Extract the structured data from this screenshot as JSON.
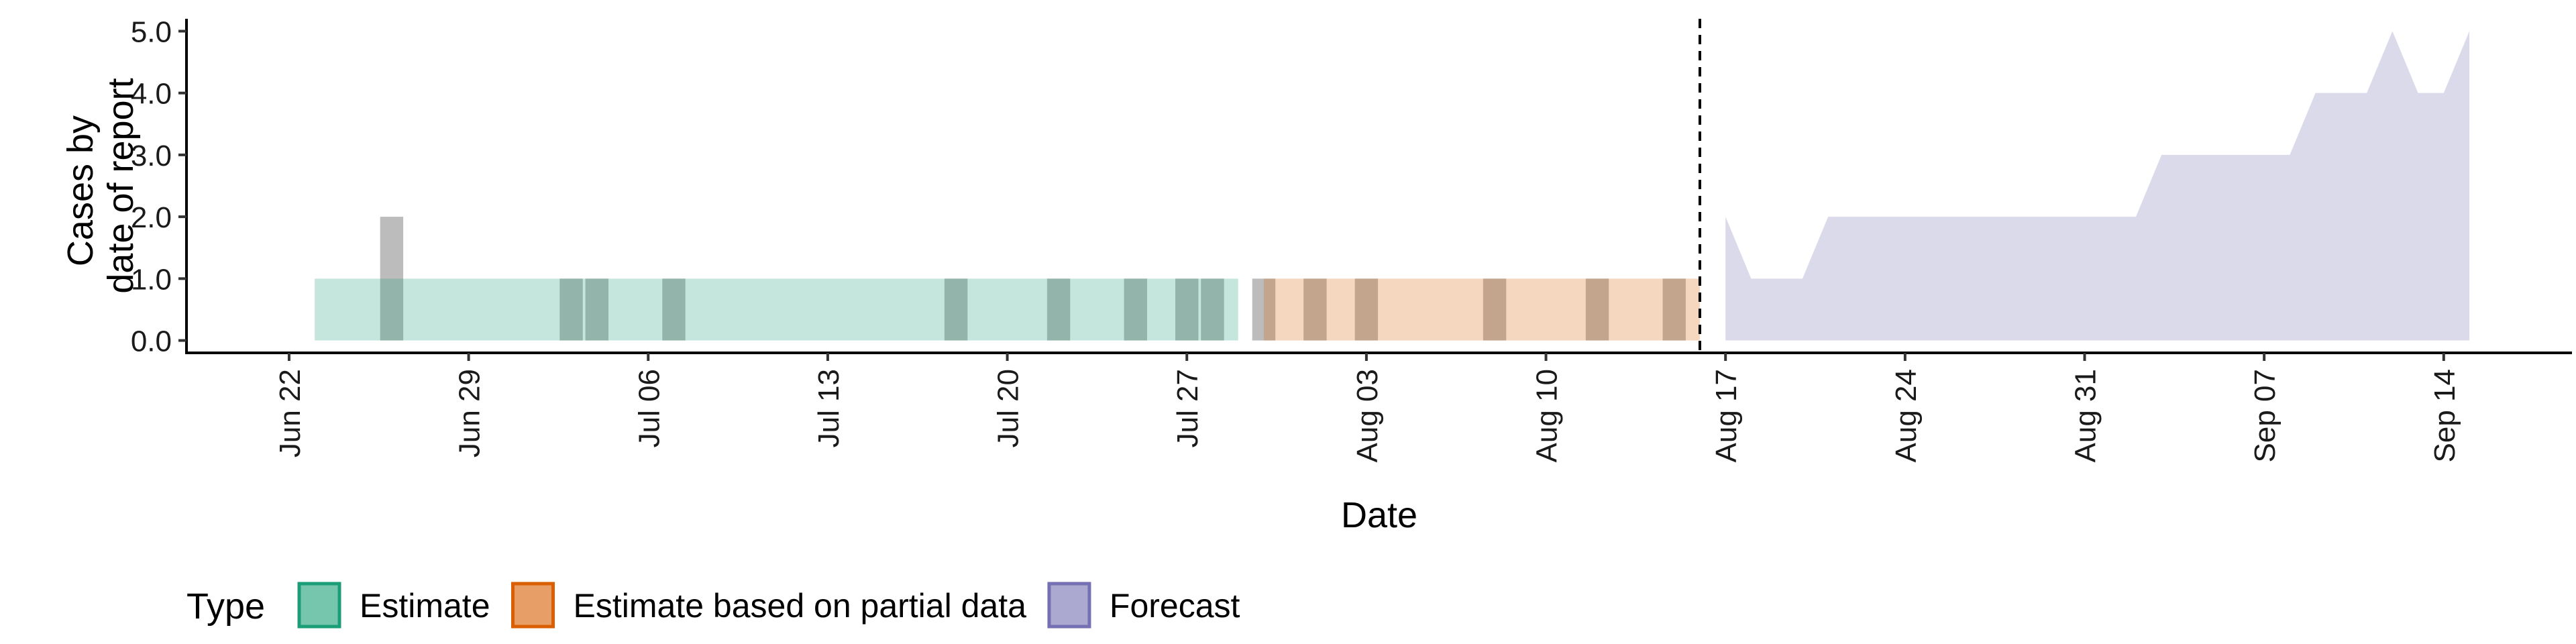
{
  "chart_data": {
    "type": "area",
    "xlabel": "Date",
    "ylabel_lines": [
      "Cases by",
      "date of report"
    ],
    "x_range": [
      "2020-06-18",
      "2020-09-19"
    ],
    "ylim": [
      -0.2,
      5.2
    ],
    "y_ticks": [
      0,
      1,
      2,
      3,
      4,
      5
    ],
    "y_tick_labels": [
      "0.0",
      "1.0",
      "2.0",
      "3.0",
      "4.0",
      "5.0"
    ],
    "x_ticks": [
      "2020-06-22",
      "2020-06-29",
      "2020-07-06",
      "2020-07-13",
      "2020-07-20",
      "2020-07-27",
      "2020-08-03",
      "2020-08-10",
      "2020-08-17",
      "2020-08-24",
      "2020-08-31",
      "2020-09-07",
      "2020-09-14"
    ],
    "x_tick_labels": [
      "Jun 22",
      "Jun 29",
      "Jul 06",
      "Jul 13",
      "Jul 20",
      "Jul 27",
      "Aug 03",
      "Aug 10",
      "Aug 17",
      "Aug 24",
      "Aug 31",
      "Sep 07",
      "Sep 14"
    ],
    "grid": false,
    "forecast_date": "2020-08-16",
    "reported_cases": {
      "color": "#a6a6a6",
      "points": [
        {
          "date": "2020-06-26",
          "value": 2
        },
        {
          "date": "2020-07-03",
          "value": 1
        },
        {
          "date": "2020-07-04",
          "value": 1
        },
        {
          "date": "2020-07-07",
          "value": 1
        },
        {
          "date": "2020-07-18",
          "value": 1
        },
        {
          "date": "2020-07-22",
          "value": 1
        },
        {
          "date": "2020-07-25",
          "value": 1
        },
        {
          "date": "2020-07-27",
          "value": 1
        },
        {
          "date": "2020-07-28",
          "value": 1
        },
        {
          "date": "2020-07-30",
          "value": 1
        },
        {
          "date": "2020-08-01",
          "value": 1
        },
        {
          "date": "2020-08-03",
          "value": 1
        },
        {
          "date": "2020-08-08",
          "value": 1
        },
        {
          "date": "2020-08-12",
          "value": 1
        },
        {
          "date": "2020-08-15",
          "value": 1
        }
      ]
    },
    "series": [
      {
        "name": "Estimate",
        "color": "#1b9e77",
        "dates": [
          "2020-06-23",
          "2020-07-29"
        ],
        "lower": [
          0,
          0
        ],
        "upper": [
          1,
          1
        ]
      },
      {
        "name": "Estimate based on partial data",
        "color": "#d95f02",
        "dates": [
          "2020-07-30",
          "2020-08-16"
        ],
        "lower": [
          0,
          0
        ],
        "upper": [
          1,
          1
        ]
      },
      {
        "name": "Forecast",
        "color": "#7570b3",
        "dates": [
          "2020-08-17",
          "2020-08-18",
          "2020-08-19",
          "2020-08-20",
          "2020-08-21",
          "2020-08-22",
          "2020-08-23",
          "2020-08-24",
          "2020-08-25",
          "2020-08-26",
          "2020-08-27",
          "2020-08-28",
          "2020-08-29",
          "2020-08-30",
          "2020-08-31",
          "2020-09-01",
          "2020-09-02",
          "2020-09-03",
          "2020-09-04",
          "2020-09-05",
          "2020-09-06",
          "2020-09-07",
          "2020-09-08",
          "2020-09-09",
          "2020-09-10",
          "2020-09-11",
          "2020-09-12",
          "2020-09-13",
          "2020-09-14",
          "2020-09-15"
        ],
        "lower": [
          0,
          0,
          0,
          0,
          0,
          0,
          0,
          0,
          0,
          0,
          0,
          0,
          0,
          0,
          0,
          0,
          0,
          0,
          0,
          0,
          0,
          0,
          0,
          0,
          0,
          0,
          0,
          0,
          0,
          0
        ],
        "upper": [
          2,
          1,
          1,
          1,
          2,
          2,
          2,
          2,
          2,
          2,
          2,
          2,
          2,
          2,
          2,
          2,
          2,
          3,
          3,
          3,
          3,
          3,
          3,
          4,
          4,
          4,
          5,
          4,
          4,
          5
        ]
      }
    ],
    "legend": {
      "title": "Type",
      "position": "bottom-left",
      "items": [
        {
          "label": "Estimate",
          "color": "#1b9e77"
        },
        {
          "label": "Estimate based on partial data",
          "color": "#d95f02"
        },
        {
          "label": "Forecast",
          "color": "#7570b3"
        }
      ]
    }
  }
}
